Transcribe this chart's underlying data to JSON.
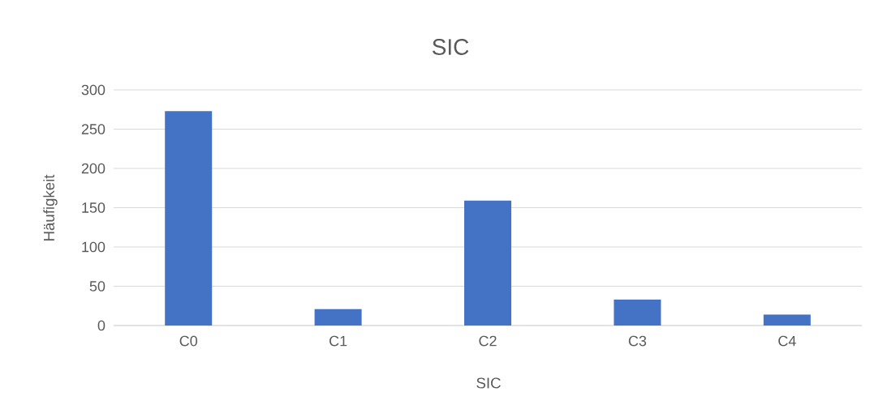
{
  "chart_data": {
    "type": "bar",
    "title": "SIC",
    "xlabel": "SIC",
    "ylabel": "Häufigkeit",
    "categories": [
      "C0",
      "C1",
      "C2",
      "C3",
      "C4"
    ],
    "values": [
      273,
      21,
      159,
      33,
      14
    ],
    "color": "#4472c4",
    "ylim": [
      0,
      300
    ],
    "yticks": [
      0,
      50,
      100,
      150,
      200,
      250,
      300
    ],
    "grid": "y"
  }
}
